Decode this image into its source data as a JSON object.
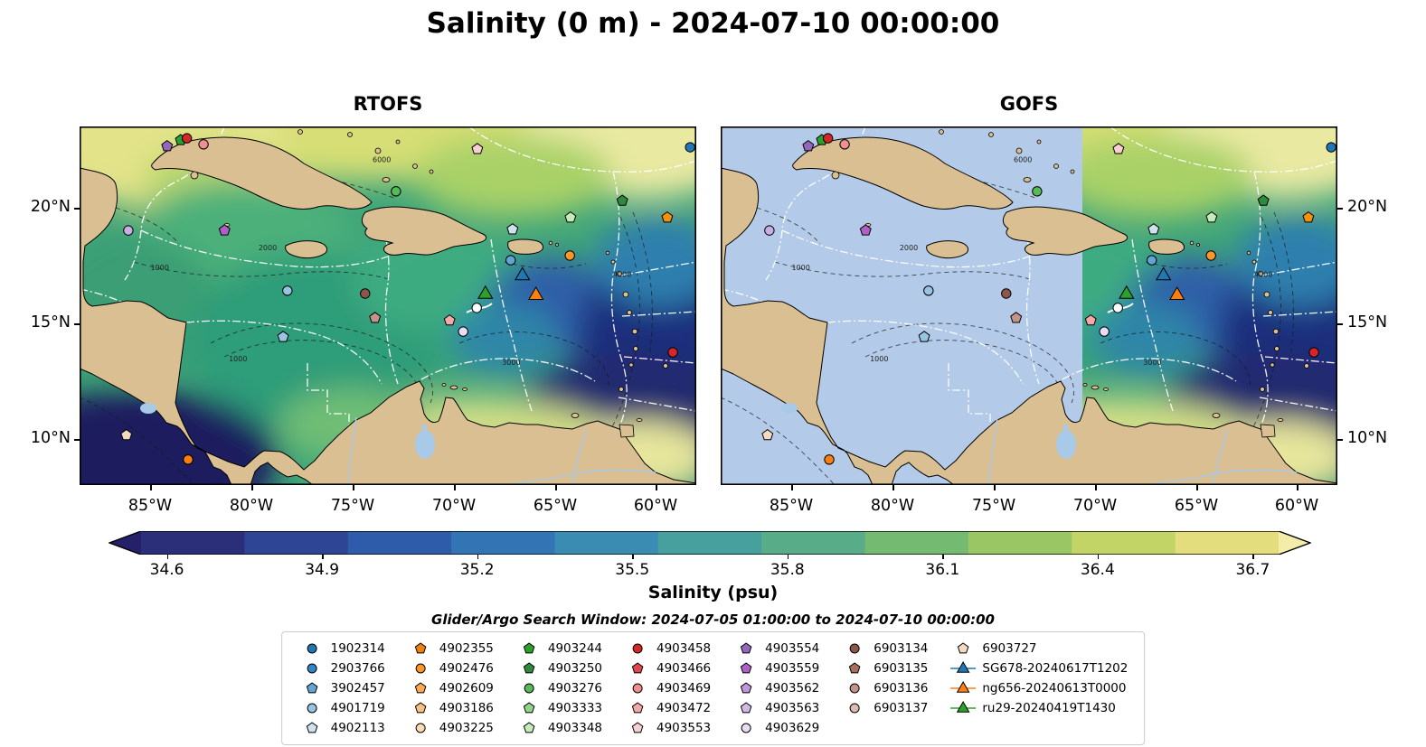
{
  "title": "Salinity (0 m) - 2024-07-10 00:00:00",
  "panels": [
    {
      "title": "RTOFS"
    },
    {
      "title": "GOFS"
    }
  ],
  "axes": {
    "x_ticks": [
      "85°W",
      "80°W",
      "75°W",
      "70°W",
      "65°W",
      "60°W"
    ],
    "y_ticks": [
      "20°N",
      "15°N",
      "10°N"
    ]
  },
  "search_window": "Glider/Argo Search Window: 2024-07-05 01:00:00 to 2024-07-10 00:00:00",
  "legend": {
    "columns": [
      [
        {
          "label": "1902314",
          "marker": "circle",
          "color": "#1f77b4"
        },
        {
          "label": "2903766",
          "marker": "circle",
          "color": "#3087c8"
        },
        {
          "label": "3902457",
          "marker": "pentagon",
          "color": "#62a5d2"
        },
        {
          "label": "4901719",
          "marker": "circle",
          "color": "#97c4e0"
        },
        {
          "label": "4902113",
          "marker": "pentagon",
          "color": "#cfe1f0"
        }
      ],
      [
        {
          "label": "4902355",
          "marker": "pentagon",
          "color": "#f08010"
        },
        {
          "label": "4902476",
          "marker": "circle",
          "color": "#ff9626"
        },
        {
          "label": "4902609",
          "marker": "pentagon",
          "color": "#ffaa4e"
        },
        {
          "label": "4903186",
          "marker": "pentagon",
          "color": "#fcc083"
        },
        {
          "label": "4903225",
          "marker": "circle",
          "color": "#fddcb5"
        }
      ],
      [
        {
          "label": "4903244",
          "marker": "pentagon",
          "color": "#2ca02c"
        },
        {
          "label": "4903250",
          "marker": "pentagon",
          "color": "#2e8b3d"
        },
        {
          "label": "4903276",
          "marker": "circle",
          "color": "#57bb58"
        },
        {
          "label": "4903333",
          "marker": "pentagon",
          "color": "#92d48e"
        },
        {
          "label": "4903348",
          "marker": "pentagon",
          "color": "#c5eabc"
        }
      ],
      [
        {
          "label": "4903458",
          "marker": "circle",
          "color": "#d62728"
        },
        {
          "label": "4903466",
          "marker": "pentagon",
          "color": "#e1484e"
        },
        {
          "label": "4903469",
          "marker": "circle",
          "color": "#ee8f90"
        },
        {
          "label": "4903472",
          "marker": "pentagon",
          "color": "#f4a9a9"
        },
        {
          "label": "4903553",
          "marker": "pentagon",
          "color": "#f8d0d4"
        }
      ],
      [
        {
          "label": "4903554",
          "marker": "pentagon",
          "color": "#9467bd"
        },
        {
          "label": "4903559",
          "marker": "pentagon",
          "color": "#b05fc9"
        },
        {
          "label": "4903562",
          "marker": "pentagon",
          "color": "#bf97dd"
        },
        {
          "label": "4903563",
          "marker": "pentagon",
          "color": "#d4b9e8"
        },
        {
          "label": "4903629",
          "marker": "circle",
          "color": "#e9dcf5"
        }
      ],
      [
        {
          "label": "6903134",
          "marker": "circle",
          "color": "#8c564b"
        },
        {
          "label": "6903135",
          "marker": "pentagon",
          "color": "#a5705c"
        },
        {
          "label": "6903136",
          "marker": "circle",
          "color": "#c2948a"
        },
        {
          "label": "6903137",
          "marker": "circle",
          "color": "#dcbcb2"
        }
      ],
      [
        {
          "label": "6903727",
          "marker": "pentagon",
          "color": "#f5d9c0"
        },
        {
          "label": "SG678-20240617T1202",
          "marker": "triangle",
          "color": "#1f77b4",
          "line": "#1f77b4"
        },
        {
          "label": "ng656-20240613T0000",
          "marker": "triangle",
          "color": "#ff7f0e",
          "line": "#ff7f0e"
        },
        {
          "label": "ru29-20240419T1430",
          "marker": "triangle",
          "color": "#2ca02c",
          "line": "#2ca02c"
        }
      ]
    ]
  },
  "chart_data": {
    "type": "heatmap",
    "field": "Salinity (psu) at 0 m",
    "valid_time": "2024-07-10 00:00:00",
    "models": [
      "RTOFS",
      "GOFS"
    ],
    "x_tick_labels": [
      "85°W",
      "80°W",
      "75°W",
      "70°W",
      "65°W",
      "60°W"
    ],
    "y_tick_labels": [
      "20°N",
      "15°N",
      "10°N"
    ],
    "colorbar": {
      "label": "Salinity (psu)",
      "tick_values": [
        34.6,
        34.9,
        35.2,
        35.5,
        35.8,
        36.1,
        36.4,
        36.7
      ],
      "vmin": 34.55,
      "vmax": 36.75,
      "band_colors": [
        "#2b2e78",
        "#2e4595",
        "#2f5caa",
        "#3274b4",
        "#3b8cb2",
        "#47a09e",
        "#58ad88",
        "#74ba70",
        "#9ac763",
        "#c3d466",
        "#e3dd7e"
      ],
      "under_color": "#24206a",
      "over_color": "#f3eda9"
    },
    "markers": [
      {
        "shape": "pentagon",
        "color": "#2ca02c",
        "x": 0.164,
        "y": 0.038
      },
      {
        "shape": "pentagon",
        "color": "#9467bd",
        "x": 0.142,
        "y": 0.055
      },
      {
        "shape": "circle",
        "color": "#d62728",
        "x": 0.174,
        "y": 0.033
      },
      {
        "shape": "circle",
        "color": "#ee8f90",
        "x": 0.201,
        "y": 0.05
      },
      {
        "shape": "pentagon",
        "color": "#f8d0d4",
        "x": 0.645,
        "y": 0.063
      },
      {
        "shape": "circle",
        "color": "#1f77b4",
        "x": 0.99,
        "y": 0.058
      },
      {
        "shape": "circle",
        "color": "#57bb58",
        "x": 0.513,
        "y": 0.181
      },
      {
        "shape": "pentagon",
        "color": "#2e8b3d",
        "x": 0.88,
        "y": 0.207
      },
      {
        "shape": "circle",
        "color": "#c9aee5",
        "x": 0.079,
        "y": 0.29
      },
      {
        "shape": "pentagon",
        "color": "#b05fc9",
        "x": 0.235,
        "y": 0.29
      },
      {
        "shape": "pentagon",
        "color": "#c5eabc",
        "x": 0.796,
        "y": 0.254
      },
      {
        "shape": "pentagon",
        "color": "#f5900c",
        "x": 0.953,
        "y": 0.254
      },
      {
        "shape": "pentagon",
        "color": "#cfe1f0",
        "x": 0.702,
        "y": 0.287
      },
      {
        "shape": "circle",
        "color": "#62a5d2",
        "x": 0.699,
        "y": 0.373
      },
      {
        "shape": "circle",
        "color": "#ff9626",
        "x": 0.795,
        "y": 0.36
      },
      {
        "shape": "triangle",
        "color": "#1f77b4",
        "x": 0.718,
        "y": 0.416
      },
      {
        "shape": "triangle",
        "color": "#ff7f0e",
        "x": 0.74,
        "y": 0.471
      },
      {
        "shape": "triangle",
        "color": "#2ca02c",
        "x": 0.658,
        "y": 0.468
      },
      {
        "shape": "circle",
        "color": "#ffffff",
        "x": 0.644,
        "y": 0.506
      },
      {
        "shape": "circle",
        "color": "#97c4e0",
        "x": 0.337,
        "y": 0.458
      },
      {
        "shape": "circle",
        "color": "#8c564b",
        "x": 0.463,
        "y": 0.466
      },
      {
        "shape": "pentagon",
        "color": "#c2948a",
        "x": 0.479,
        "y": 0.534
      },
      {
        "shape": "pentagon",
        "color": "#f4a9a9",
        "x": 0.6,
        "y": 0.541
      },
      {
        "shape": "circle",
        "color": "#e9dcf5",
        "x": 0.622,
        "y": 0.572
      },
      {
        "shape": "pentagon",
        "color": "#97c4e0",
        "x": 0.33,
        "y": 0.587
      },
      {
        "shape": "pentagon",
        "color": "#f5d9c0",
        "x": 0.076,
        "y": 0.861
      },
      {
        "shape": "circle",
        "color": "#ff7f0e",
        "x": 0.176,
        "y": 0.929
      },
      {
        "shape": "circle",
        "color": "#d62728",
        "x": 0.962,
        "y": 0.63
      }
    ],
    "contour_labels": [
      {
        "text": "6000",
        "x": 0.49,
        "y": 0.1
      },
      {
        "text": "1000",
        "x": 0.257,
        "y": 0.655
      },
      {
        "text": "3000",
        "x": 0.7,
        "y": 0.665
      },
      {
        "text": "2000",
        "x": 0.305,
        "y": 0.345
      },
      {
        "text": "4000",
        "x": 0.88,
        "y": 0.42
      },
      {
        "text": "1000",
        "x": 0.13,
        "y": 0.4
      }
    ],
    "colors": {
      "land": "#d9bf92",
      "gofs_nodata": "#b3cbe8",
      "river": "#a9c9e9",
      "ocean_base": "#3fa578"
    }
  }
}
